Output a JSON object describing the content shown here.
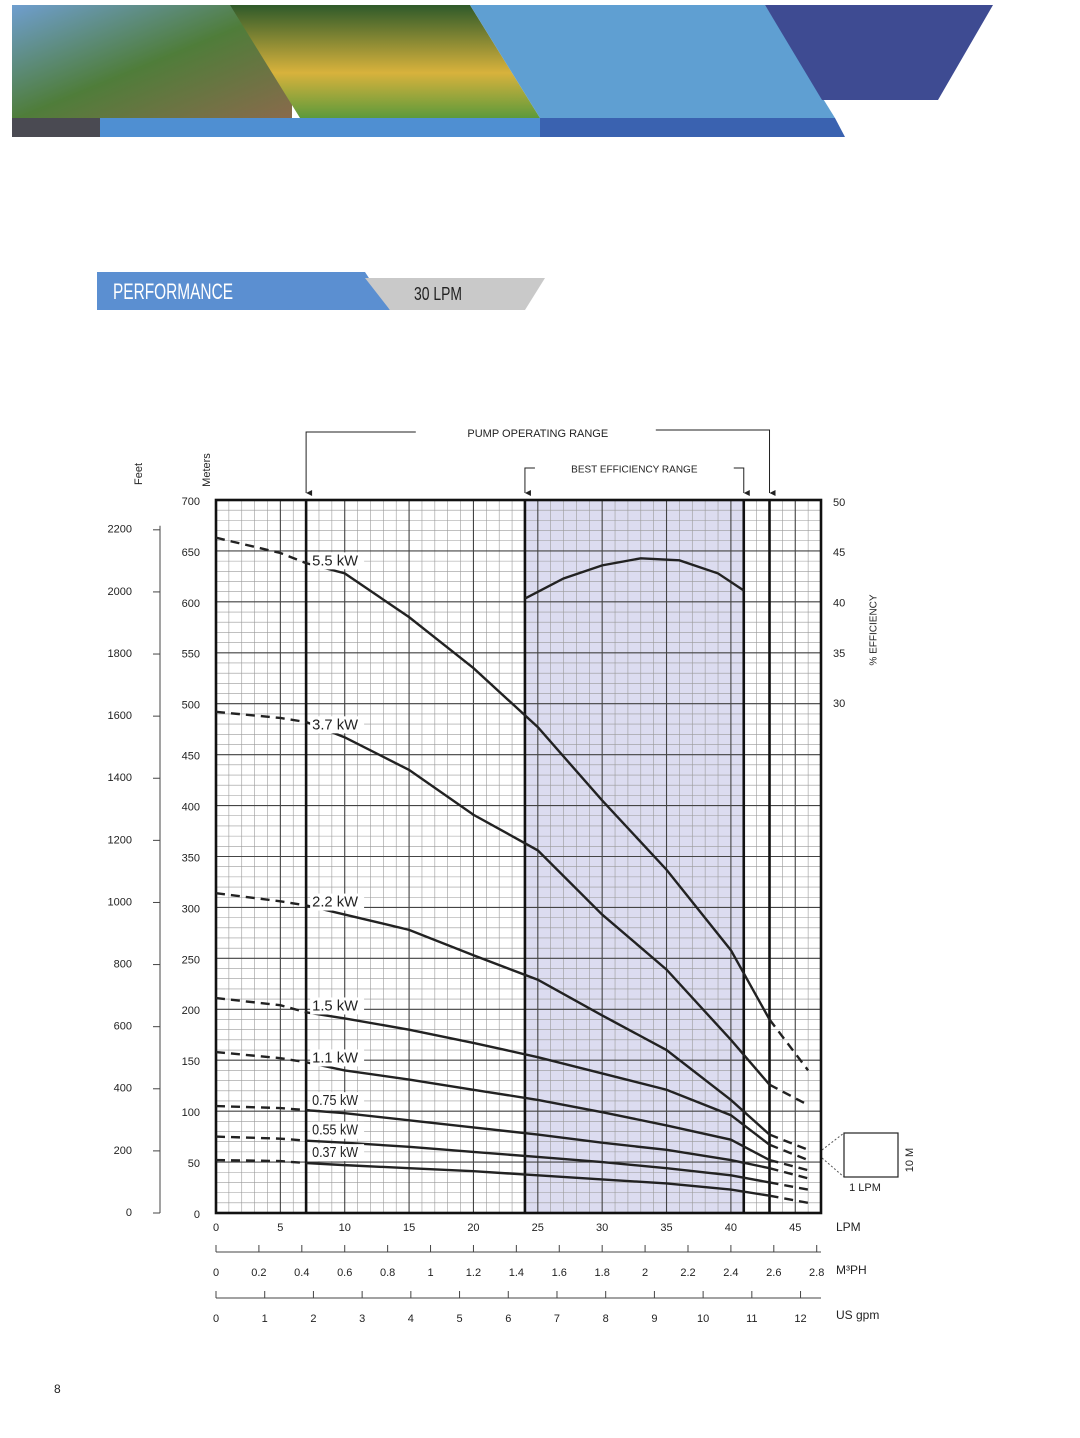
{
  "header": {
    "section": "PERFORMANCE",
    "model": "30 LPM"
  },
  "page_number": "8",
  "chart_data": {
    "type": "line",
    "xlabel": "LPM",
    "x2label": "M³PH",
    "x3label": "US gpm",
    "ylabel": "Meters",
    "y2label": "% EFFICIENCY",
    "feet_label": "Feet",
    "xlim": [
      0,
      47
    ],
    "xticks": [
      0,
      5,
      10,
      15,
      20,
      25,
      30,
      35,
      40,
      45
    ],
    "x2lim": [
      0,
      2.82
    ],
    "x2ticks": [
      0,
      0.2,
      0.4,
      0.6,
      0.8,
      1,
      1.2,
      1.4,
      1.6,
      1.8,
      2,
      2.2,
      2.4,
      2.6,
      2.8
    ],
    "x3lim": [
      0,
      12.42
    ],
    "x3ticks": [
      0,
      1,
      2,
      3,
      4,
      5,
      6,
      7,
      8,
      9,
      10,
      11,
      12
    ],
    "ylim": [
      0,
      700
    ],
    "yticks": [
      0,
      50,
      100,
      150,
      200,
      250,
      300,
      350,
      400,
      450,
      500,
      550,
      600,
      650,
      700
    ],
    "y2lim": [
      -20.6,
      50.3
    ],
    "y2ticks": [
      30,
      35,
      40,
      45,
      50
    ],
    "feet_lim": [
      0,
      2296
    ],
    "feet_ticks": [
      0,
      200,
      400,
      600,
      800,
      1000,
      1200,
      1400,
      1600,
      1800,
      2000,
      2200
    ],
    "grid": true,
    "x_minor_step": 1,
    "y_minor_step": 10,
    "operating_range": {
      "label": "PUMP OPERATING RANGE",
      "x": [
        7,
        43
      ]
    },
    "best_efficiency_range": {
      "label": "BEST EFFICIENCY RANGE",
      "x": [
        24,
        41
      ],
      "color": "#dcdcf0"
    },
    "scale_box": {
      "x_label": "1 LPM",
      "y_label": "10 M"
    },
    "x": [
      0,
      5,
      7,
      10,
      15,
      20,
      25,
      30,
      35,
      40,
      43,
      46
    ],
    "series": [
      {
        "name": "5.5 kW",
        "color": "#222222",
        "values": [
          663,
          648,
          638,
          628,
          585,
          535,
          477,
          405,
          337,
          258,
          190,
          140
        ]
      },
      {
        "name": "3.7 kW",
        "color": "#222222",
        "values": [
          492,
          486,
          482,
          467,
          435,
          391,
          356,
          293,
          239,
          170,
          126,
          106
        ]
      },
      {
        "name": "2.2 kW",
        "color": "#222222",
        "values": [
          314,
          306,
          302,
          293,
          278,
          253,
          229,
          194,
          160,
          111,
          77,
          62
        ]
      },
      {
        "name": "1.5 kW",
        "color": "#222222",
        "values": [
          211,
          204,
          197,
          191,
          180,
          167,
          153,
          137,
          121,
          96,
          67,
          52
        ]
      },
      {
        "name": "1.1 kW",
        "color": "#222222",
        "values": [
          158,
          152,
          148,
          140,
          131,
          121,
          111,
          99,
          86,
          72,
          52,
          42
        ]
      },
      {
        "name": "0.75 kW",
        "color": "#222222",
        "values": [
          105,
          103,
          101,
          98,
          91,
          84,
          77,
          69,
          62,
          52,
          44,
          34
        ]
      },
      {
        "name": "0.55 kW",
        "color": "#222222",
        "values": [
          75,
          73,
          71,
          69,
          65,
          60,
          55,
          50,
          44,
          37,
          30,
          23
        ]
      },
      {
        "name": "0.37 kW",
        "color": "#222222",
        "values": [
          52,
          51,
          49,
          47,
          44,
          41,
          37,
          33,
          29,
          23,
          17,
          10
        ]
      }
    ],
    "efficiency": {
      "axis": "y2",
      "color": "#222222",
      "x": [
        24,
        27,
        30,
        33,
        36,
        39,
        41
      ],
      "values": [
        40.5,
        42.5,
        43.8,
        44.5,
        44.3,
        43,
        41.3
      ]
    }
  }
}
